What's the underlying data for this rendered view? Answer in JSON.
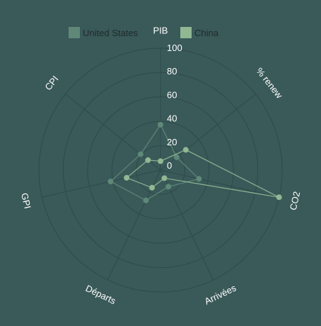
{
  "chart_data": {
    "type": "radar",
    "title": "",
    "axes": [
      "PIB",
      "% renew",
      "CO2",
      "Arrivées",
      "Départs",
      "GPI",
      "CPI"
    ],
    "rlim": [
      0,
      100
    ],
    "ticks": [
      0,
      20,
      40,
      60,
      80,
      100
    ],
    "grid": true,
    "legend": "top",
    "series": [
      {
        "name": "United States",
        "color": "#5f8878",
        "values": [
          35,
          14,
          30,
          12,
          25,
          40,
          18
        ]
      },
      {
        "name": "China",
        "color": "#8fb893",
        "values": [
          4,
          24,
          100,
          4,
          13,
          26,
          10
        ]
      }
    ]
  }
}
